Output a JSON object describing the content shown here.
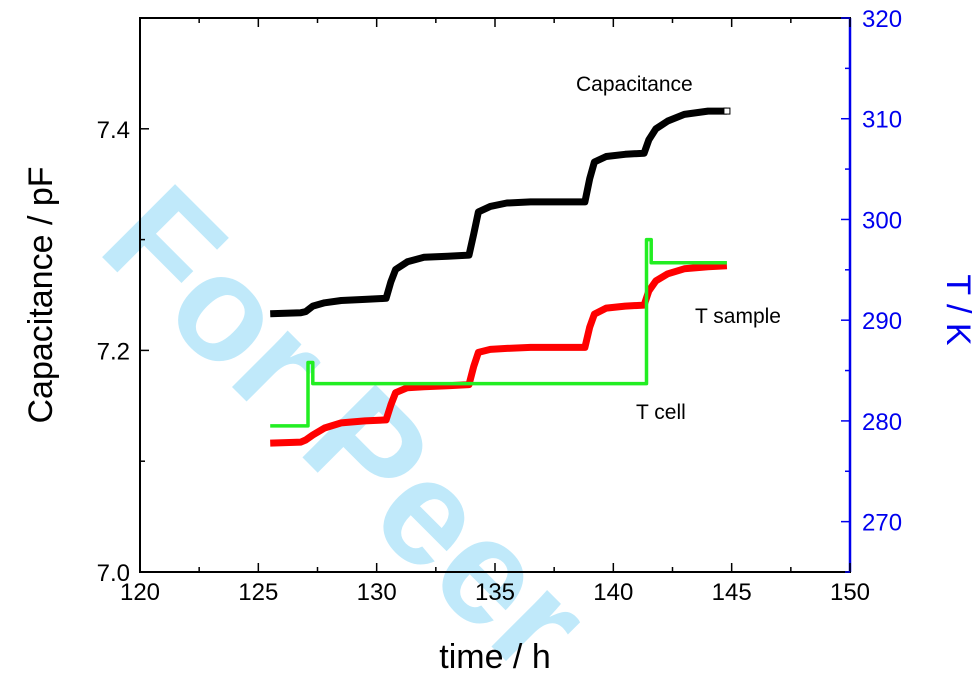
{
  "watermark": "For Peer",
  "chart_data": {
    "type": "line",
    "xlabel": "time /  h",
    "ylabel": "Capacitance /  pF",
    "y2label": "T / K",
    "xlim": [
      120,
      150
    ],
    "ylim": [
      7.0,
      7.5
    ],
    "y2lim": [
      265,
      320
    ],
    "xticks": [
      120,
      125,
      130,
      135,
      140,
      145,
      150
    ],
    "yticks": [
      7.0,
      7.2,
      7.4
    ],
    "y2ticks": [
      270,
      280,
      290,
      300,
      310,
      320
    ],
    "grid": false,
    "colors": {
      "capacitance": "#000000",
      "t_sample": "#ff0000",
      "t_cell": "#22ee22",
      "right_axis": "#0000ee"
    },
    "annotations": [
      "Capacitance",
      "T sample",
      "T cell"
    ],
    "series": [
      {
        "name": "Capacitance",
        "axis": "left",
        "color": "#000000",
        "x": [
          125.5,
          126.8,
          127.0,
          127.3,
          127.8,
          128.5,
          129.5,
          130.4,
          130.6,
          130.8,
          131.3,
          132.0,
          133.0,
          133.9,
          134.1,
          134.3,
          134.8,
          135.5,
          136.5,
          138.0,
          138.8,
          139.0,
          139.2,
          139.7,
          140.5,
          141.3,
          141.5,
          141.8,
          142.3,
          143.0,
          144.0,
          144.8
        ],
        "y": [
          7.233,
          7.234,
          7.235,
          7.24,
          7.243,
          7.245,
          7.246,
          7.247,
          7.262,
          7.273,
          7.28,
          7.284,
          7.285,
          7.286,
          7.305,
          7.325,
          7.33,
          7.333,
          7.334,
          7.334,
          7.334,
          7.355,
          7.37,
          7.375,
          7.377,
          7.378,
          7.39,
          7.4,
          7.407,
          7.413,
          7.416,
          7.416
        ]
      },
      {
        "name": "T sample",
        "axis": "right",
        "color": "#ff0000",
        "x": [
          125.5,
          126.8,
          127.0,
          127.3,
          127.8,
          128.5,
          129.5,
          130.4,
          130.6,
          130.8,
          131.3,
          132.0,
          133.0,
          133.9,
          134.1,
          134.3,
          134.8,
          135.5,
          136.5,
          138.0,
          138.8,
          139.0,
          139.2,
          139.7,
          140.5,
          141.3,
          141.5,
          141.8,
          142.3,
          143.0,
          144.0,
          144.8
        ],
        "y": [
          277.8,
          277.9,
          278.1,
          278.6,
          279.3,
          279.8,
          280.0,
          280.1,
          281.6,
          282.8,
          283.3,
          283.4,
          283.5,
          283.6,
          285.4,
          286.8,
          287.1,
          287.2,
          287.3,
          287.3,
          287.3,
          289.3,
          290.6,
          291.2,
          291.4,
          291.5,
          292.9,
          293.9,
          294.6,
          295.1,
          295.3,
          295.4
        ]
      },
      {
        "name": "T cell",
        "axis": "right",
        "color": "#22ee22",
        "x": [
          125.5,
          127.1,
          127.1,
          127.3,
          127.3,
          141.4,
          141.4,
          141.6,
          141.6,
          144.8
        ],
        "y": [
          279.5,
          279.5,
          285.8,
          285.8,
          283.7,
          283.7,
          298.0,
          298.0,
          295.7,
          295.7
        ]
      }
    ]
  }
}
